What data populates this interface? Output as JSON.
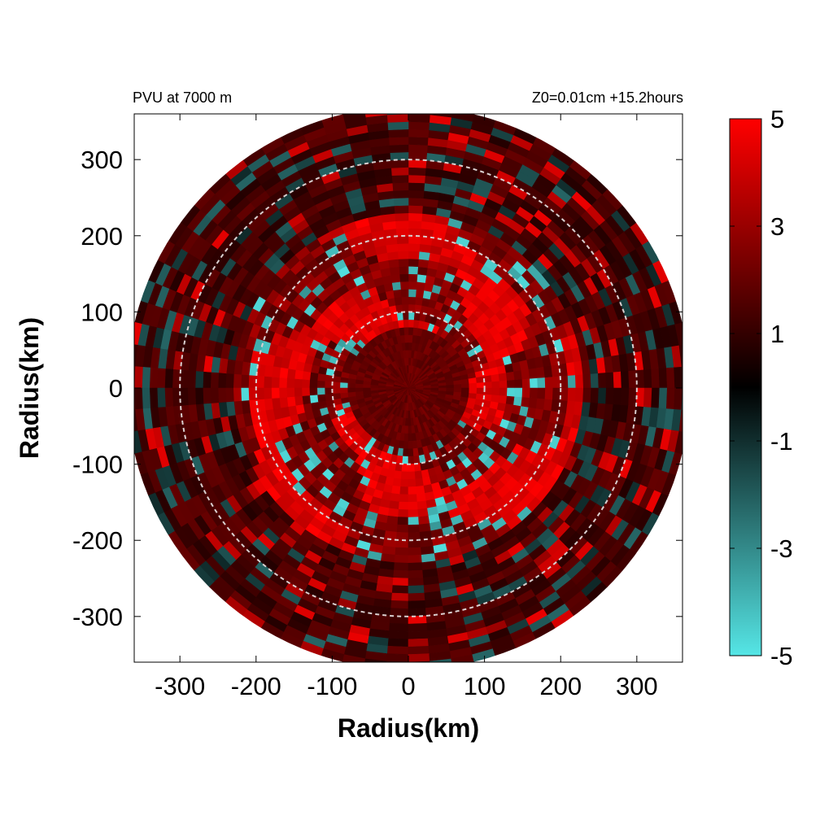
{
  "chart_data": {
    "type": "heatmap",
    "title_left": "PVU at  7000 m",
    "title_right": "Z0=0.01cm  +15.2hours",
    "xlabel": "Radius(km)",
    "ylabel": "Radius(km)",
    "xlim": [
      -360,
      360
    ],
    "ylim": [
      -360,
      360
    ],
    "xticks": [
      -300,
      -200,
      -100,
      0,
      100,
      200,
      300
    ],
    "yticks": [
      300,
      200,
      100,
      0,
      -100,
      -200,
      -300
    ],
    "xtick_labels": [
      "-300",
      "-200",
      "-100",
      "0",
      "100",
      "200",
      "300"
    ],
    "ytick_labels": [
      "300",
      "200",
      "100",
      "0",
      "-100",
      "-200",
      "-300"
    ],
    "domain_radius_km": 370,
    "reference_circles_km": [
      100,
      200,
      300
    ],
    "colorbar": {
      "range": [
        -5,
        5
      ],
      "ticks": [
        5,
        3,
        1,
        -1,
        -3,
        -5
      ],
      "tick_labels": [
        "5",
        "3",
        "1",
        "-1",
        "-3",
        "-5"
      ],
      "colors": [
        {
          "value": 5,
          "color": "#ff0000"
        },
        {
          "value": 0,
          "color": "#000000"
        },
        {
          "value": -5,
          "color": "#55e6e6"
        }
      ]
    },
    "pattern": "inner eye core (<90 km) ~2 PVU; strong red spiral bands 80-220 km (~4-5 PVU) interleaved with cyan negative patches (~-4 PVU); outer region 220-370 km dark red (~1-2 PVU) with dark teal streaks (~-1 to -2 PVU)"
  }
}
